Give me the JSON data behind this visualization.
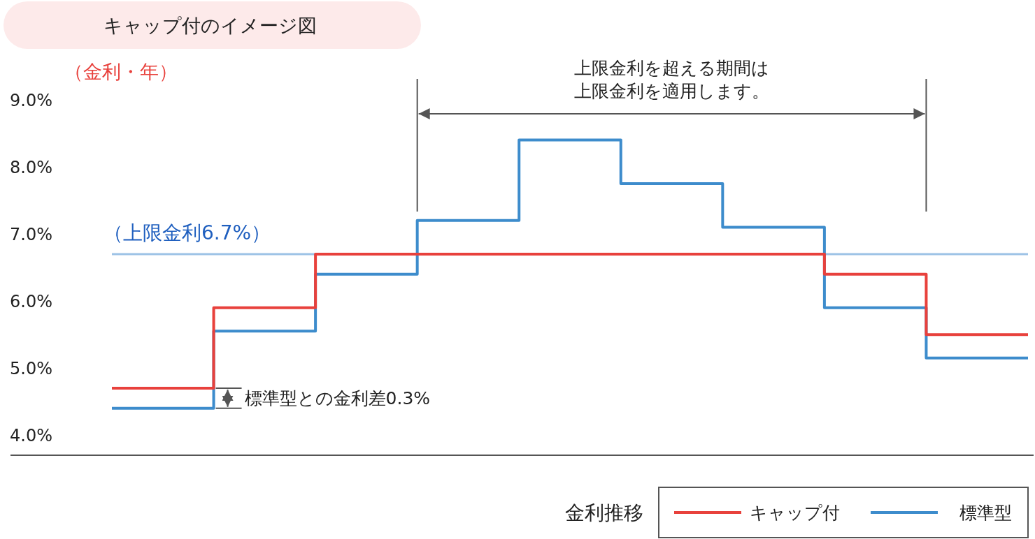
{
  "chart_data": {
    "type": "step",
    "title": "キャップ付のイメージ図",
    "ylabel": "（金利・年）",
    "legend_title": "金利推移",
    "categories": [
      null,
      null,
      null,
      null,
      null,
      null,
      null,
      null,
      null,
      null
    ],
    "series": [
      {
        "name": "キャップ付",
        "color": "#e8413c",
        "values": [
          4.7,
          5.9,
          6.7,
          6.7,
          6.7,
          6.7,
          6.7,
          6.4,
          5.5,
          5.5
        ]
      },
      {
        "name": "標準型",
        "color": "#3d8ccc",
        "values": [
          4.4,
          5.55,
          6.4,
          7.2,
          8.4,
          7.75,
          7.1,
          5.9,
          5.15,
          5.15
        ]
      }
    ],
    "ylim": [
      3.7,
      9
    ],
    "yticks": [
      {
        "value": 4,
        "label": "4.0%"
      },
      {
        "value": 5,
        "label": "5.0%"
      },
      {
        "value": 6,
        "label": "6.0%"
      },
      {
        "value": 7,
        "label": "7.0%"
      },
      {
        "value": 8,
        "label": "8.0%"
      },
      {
        "value": 9,
        "label": "9.0%"
      }
    ],
    "ref_lines": [
      {
        "axis": "y",
        "value": 6.7,
        "label": "（上限金利6.7%）",
        "color": "#9dc3e6"
      }
    ],
    "annotations": [
      "上限金利を超える期間は上限金利を適用します。",
      "標準型との金利差0.3%"
    ],
    "grid": false,
    "legend": "bottom right",
    "marker": "none",
    "line_style": "solid"
  }
}
